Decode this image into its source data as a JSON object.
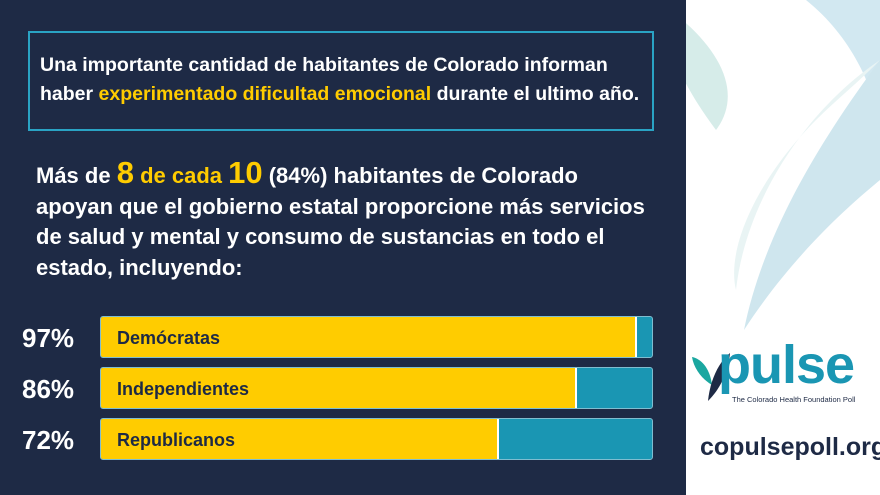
{
  "callout": {
    "before": "Una importante cantidad de habitantes de Colorado informan haber ",
    "highlight": "experimentado dificultad emocional",
    "after": " durante el ultimo año."
  },
  "headline": {
    "p1": "Más de ",
    "n1": "8",
    "p2": " de cada ",
    "n2": "10",
    "p3": " (84%) habitantes de Colorado apoyan que el gobierno estatal proporcione más servicios de salud y mental y consumo de sustancias en todo el estado, incluyendo:"
  },
  "chart_data": {
    "type": "bar",
    "orientation": "horizontal",
    "categories": [
      "Demócratas",
      "Independientes",
      "Republicanos"
    ],
    "values": [
      97,
      86,
      72
    ],
    "value_labels": [
      "97%",
      "86%",
      "72%"
    ],
    "xlim": [
      0,
      100
    ],
    "colors": {
      "fill": "#ffcc00",
      "track": "#1a96b3"
    }
  },
  "brand": {
    "logo_word": "pulse",
    "tagline": "The Colorado Health Foundation Poll",
    "url": "copulsepoll.org"
  },
  "colors": {
    "background": "#1e2a45",
    "accent": "#ffcc00",
    "teal": "#1a96b3",
    "callout_border": "#2aa3c4"
  }
}
